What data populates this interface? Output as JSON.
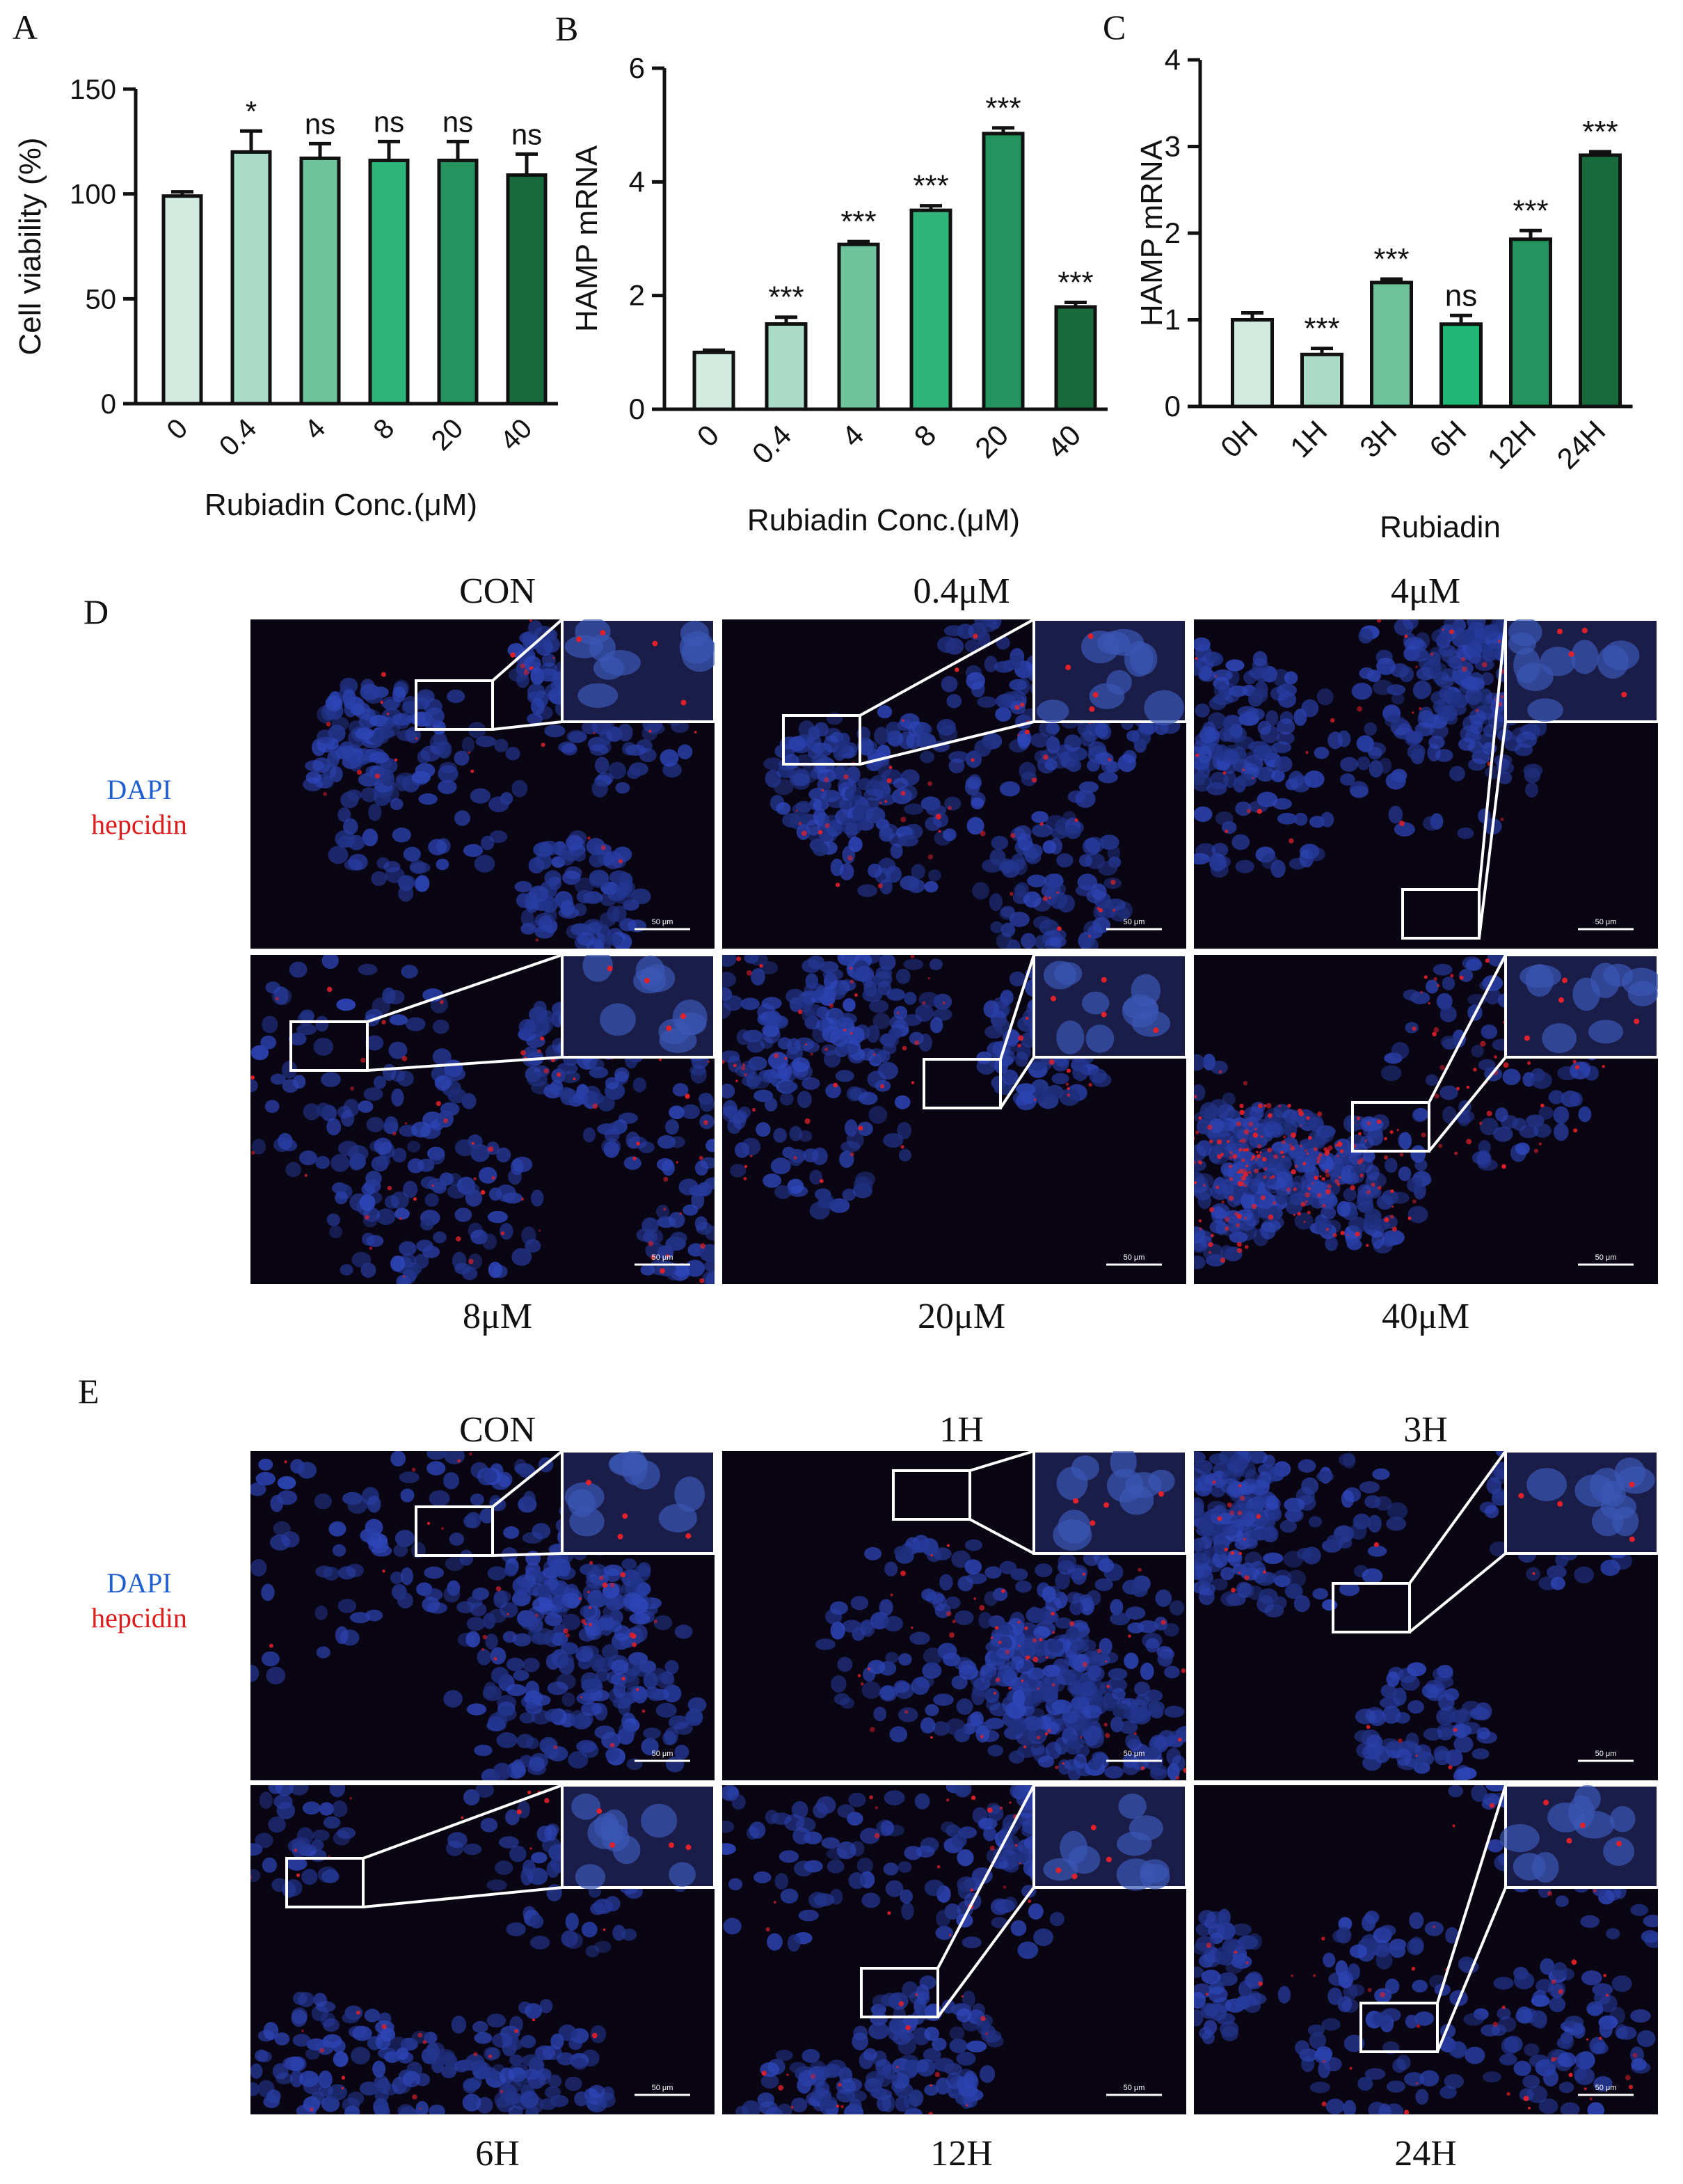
{
  "panels": {
    "A": "A",
    "B": "B",
    "C": "C",
    "D": "D",
    "E": "E"
  },
  "chart_data": [
    {
      "id": "A",
      "type": "bar",
      "categories": [
        "0",
        "0.4",
        "4",
        "8",
        "20",
        "40"
      ],
      "values": [
        99,
        120,
        117,
        116,
        116,
        109
      ],
      "errors": [
        2,
        10,
        7,
        9,
        9,
        10
      ],
      "significance": [
        "",
        "*",
        "ns",
        "ns",
        "ns",
        "ns"
      ],
      "ylabel": "Cell viability (%)",
      "xlabel": "Rubiadin Conc.(μM)",
      "ylim": [
        0,
        150
      ],
      "yticks": [
        0,
        50,
        100,
        150
      ],
      "colors": [
        "#d2ebe0",
        "#a9dbc6",
        "#6cc39c",
        "#2fb57a",
        "#24935d",
        "#166a3c"
      ]
    },
    {
      "id": "B",
      "type": "bar",
      "categories": [
        "0",
        "0.4",
        "4",
        "8",
        "20",
        "40"
      ],
      "values": [
        1.0,
        1.5,
        2.9,
        3.5,
        4.85,
        1.8
      ],
      "errors": [
        0.04,
        0.12,
        0.05,
        0.08,
        0.1,
        0.08
      ],
      "significance": [
        "",
        "***",
        "***",
        "***",
        "***",
        "***"
      ],
      "ylabel": "HAMP mRNA",
      "xlabel": "Rubiadin Conc.(μM)",
      "ylim": [
        0,
        6
      ],
      "yticks": [
        0,
        2,
        4,
        6
      ],
      "colors": [
        "#d2ebe0",
        "#a9dbc6",
        "#6cc39c",
        "#2fb57a",
        "#24935d",
        "#166a3c"
      ]
    },
    {
      "id": "C",
      "type": "bar",
      "categories": [
        "0H",
        "1H",
        "3H",
        "6H",
        "12H",
        "24H"
      ],
      "values": [
        1.0,
        0.6,
        1.43,
        0.95,
        1.93,
        2.9
      ],
      "errors": [
        0.08,
        0.07,
        0.04,
        0.1,
        0.1,
        0.04
      ],
      "significance": [
        "",
        "***",
        "***",
        "ns",
        "***",
        "***"
      ],
      "ylabel": "HAMP mRNA",
      "xlabel": "Rubiadin",
      "ylim": [
        0,
        4
      ],
      "yticks": [
        0,
        1,
        2,
        3,
        4
      ],
      "colors": [
        "#d2ebe0",
        "#a9dbc6",
        "#6cc39c",
        "#1fb573",
        "#24935d",
        "#166a3c"
      ]
    }
  ],
  "legend": {
    "dapi": "DAPI",
    "hepcidin": "hepcidin"
  },
  "panel_d": {
    "top_labels": [
      "CON",
      "0.4μM",
      "4μM"
    ],
    "bottom_labels": [
      "8μM",
      "20μM",
      "40μM"
    ]
  },
  "panel_e": {
    "top_labels": [
      "CON",
      "1H",
      "3H"
    ],
    "bottom_labels": [
      "6H",
      "12H",
      "24H"
    ]
  },
  "scale_bar": "50 μm",
  "colors": {
    "nuclei": "#2b4aa8",
    "hepcidin": "#e0202a",
    "background": "#0a0512"
  }
}
